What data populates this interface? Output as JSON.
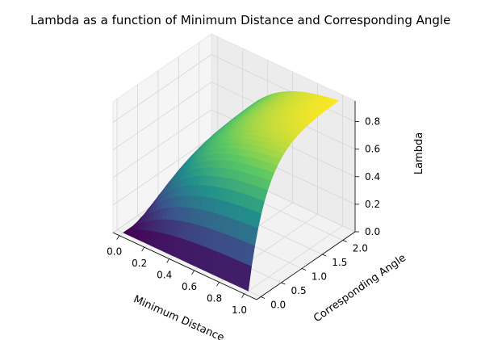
{
  "chart_data": {
    "type": "surface3d",
    "title": "Lambda as a function of Minimum Distance and Corresponding Angle",
    "xlabel": "Minimum Distance",
    "ylabel": "Corresponding Angle",
    "zlabel": "Lambda",
    "xlim": [
      -0.05,
      1.1
    ],
    "ylim": [
      -0.1,
      2.3
    ],
    "zlim": [
      0.0,
      0.95
    ],
    "x_ticks": [
      0.0,
      0.2,
      0.4,
      0.6,
      0.8,
      1.0
    ],
    "y_ticks": [
      0.0,
      0.5,
      1.0,
      1.5,
      2.0
    ],
    "z_ticks": [
      0.0,
      0.2,
      0.4,
      0.6,
      0.8
    ],
    "x_tick_labels": [
      "0.0",
      "0.2",
      "0.4",
      "0.6",
      "0.8",
      "1.0"
    ],
    "y_tick_labels": [
      "0.0",
      "0.5",
      "1.0",
      "1.5",
      "2.0"
    ],
    "z_tick_labels": [
      "0.0",
      "0.2",
      "0.4",
      "0.6",
      "0.8"
    ],
    "x_range": [
      0.0,
      1.0
    ],
    "y_range": [
      0.0,
      2.2
    ],
    "lambda_max": 0.93,
    "grid": true,
    "colormap": "viridis",
    "colormap_stops": [
      "#440154",
      "#3b528b",
      "#21918c",
      "#5ec962",
      "#fde725"
    ],
    "pane_color": "#f2f2f2",
    "grid_color": "#d6d6d6"
  }
}
